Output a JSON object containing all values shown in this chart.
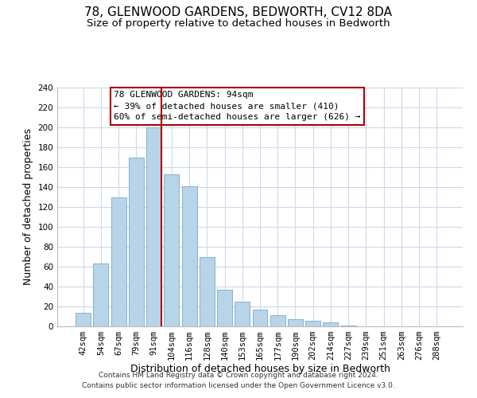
{
  "title": "78, GLENWOOD GARDENS, BEDWORTH, CV12 8DA",
  "subtitle": "Size of property relative to detached houses in Bedworth",
  "xlabel": "Distribution of detached houses by size in Bedworth",
  "ylabel": "Number of detached properties",
  "categories": [
    "42sqm",
    "54sqm",
    "67sqm",
    "79sqm",
    "91sqm",
    "104sqm",
    "116sqm",
    "128sqm",
    "140sqm",
    "153sqm",
    "165sqm",
    "177sqm",
    "190sqm",
    "202sqm",
    "214sqm",
    "227sqm",
    "239sqm",
    "251sqm",
    "263sqm",
    "276sqm",
    "288sqm"
  ],
  "values": [
    14,
    63,
    130,
    170,
    200,
    153,
    141,
    70,
    37,
    25,
    17,
    11,
    7,
    6,
    4,
    1,
    0,
    0,
    0,
    0,
    0
  ],
  "bar_color": "#b8d4e8",
  "bar_edge_color": "#7aa8cc",
  "highlight_color": "#aa0000",
  "ylim": [
    0,
    240
  ],
  "yticks": [
    0,
    20,
    40,
    60,
    80,
    100,
    120,
    140,
    160,
    180,
    200,
    220,
    240
  ],
  "annotation_title": "78 GLENWOOD GARDENS: 94sqm",
  "annotation_line1": "← 39% of detached houses are smaller (410)",
  "annotation_line2": "60% of semi-detached houses are larger (626) →",
  "annotation_box_color": "#ffffff",
  "annotation_box_edge": "#aa0000",
  "vline_x_index": 4,
  "footer_line1": "Contains HM Land Registry data © Crown copyright and database right 2024.",
  "footer_line2": "Contains public sector information licensed under the Open Government Licence v3.0.",
  "background_color": "#ffffff",
  "grid_color": "#ccd9e8",
  "title_fontsize": 11,
  "subtitle_fontsize": 9.5,
  "axis_label_fontsize": 9,
  "tick_fontsize": 7.5,
  "annotation_fontsize": 8,
  "footer_fontsize": 6.5
}
